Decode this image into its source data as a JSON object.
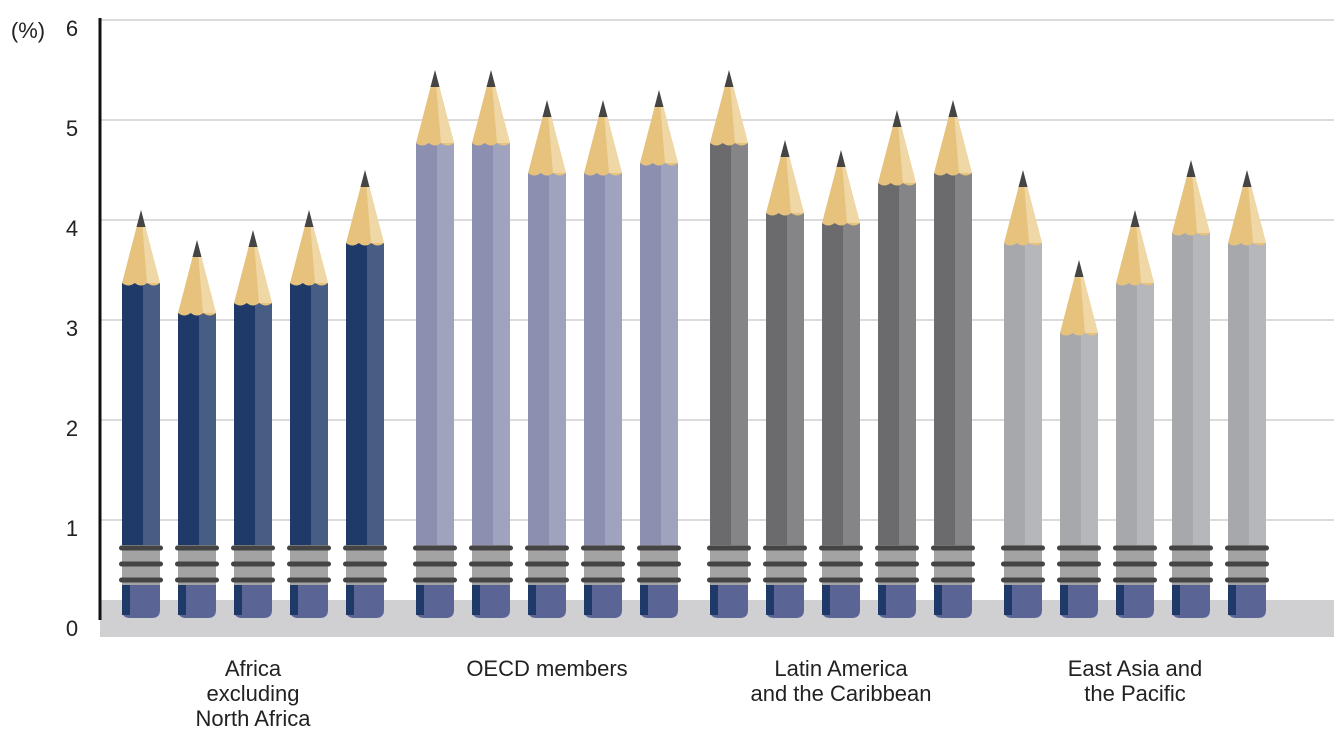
{
  "chart_data": {
    "type": "pencil-bar",
    "y_label": "(%)",
    "ylim": [
      0,
      6
    ],
    "yticks": [
      0,
      1,
      2,
      3,
      4,
      5,
      6
    ],
    "grid": true,
    "groups": [
      {
        "name": "Africa\nexcluding\nNorth Africa",
        "color": "#1f3a68",
        "values": [
          4.1,
          3.8,
          3.9,
          4.1,
          4.5
        ]
      },
      {
        "name": "OECD members",
        "color": "#8c8fb0",
        "values": [
          5.5,
          5.5,
          5.2,
          5.2,
          5.3
        ]
      },
      {
        "name": "Latin America\nand the Caribbean",
        "color": "#6b6b6d",
        "values": [
          5.5,
          4.8,
          4.7,
          5.1,
          5.2
        ]
      },
      {
        "name": "East Asia and\nthe Pacific",
        "color": "#a6a8ab",
        "values": [
          4.5,
          3.6,
          4.1,
          4.6,
          4.5
        ]
      }
    ]
  }
}
